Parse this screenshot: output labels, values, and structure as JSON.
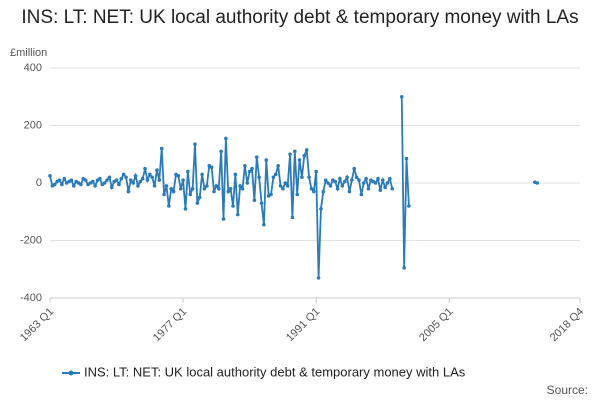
{
  "chart_data": {
    "type": "line",
    "title": "INS: LT: NET: UK local authority debt & temporary money with LAs",
    "y_label": "£million",
    "source": "Source:",
    "categories": [
      "1963 Q1",
      null,
      null,
      null,
      null,
      null,
      null,
      null,
      null,
      null,
      null,
      null,
      null,
      null,
      null,
      null,
      null,
      null,
      null,
      null,
      null,
      null,
      null,
      null,
      null,
      null,
      null,
      null,
      null,
      null,
      null,
      null,
      null,
      null,
      null,
      null,
      null,
      null,
      null,
      null,
      null,
      null,
      null,
      null,
      null,
      null,
      null,
      null,
      null,
      null,
      null,
      null,
      null,
      null,
      null,
      null,
      "1977 Q1",
      null,
      null,
      null,
      null,
      null,
      null,
      null,
      null,
      null,
      null,
      null,
      null,
      null,
      null,
      null,
      null,
      null,
      null,
      null,
      null,
      null,
      null,
      null,
      null,
      null,
      null,
      null,
      null,
      null,
      null,
      null,
      null,
      null,
      null,
      null,
      null,
      null,
      null,
      null,
      null,
      null,
      null,
      null,
      null,
      null,
      null,
      null,
      null,
      null,
      null,
      null,
      null,
      null,
      null,
      null,
      "1991 Q1",
      null,
      null,
      null,
      null,
      null,
      null,
      null,
      null,
      null,
      null,
      null,
      null,
      null,
      null,
      null,
      null,
      null,
      null,
      null,
      null,
      null,
      null,
      null,
      null,
      null,
      null,
      null,
      null,
      null,
      null,
      null,
      null,
      null,
      null,
      null,
      null,
      null,
      null,
      null,
      null,
      null,
      null,
      null,
      null,
      null,
      null,
      null,
      null,
      null,
      null,
      null,
      null,
      null,
      null,
      null,
      "2005 Q1",
      null,
      null,
      null,
      null,
      null,
      null,
      null,
      null,
      null,
      null,
      null,
      null,
      null,
      null,
      null,
      null,
      null,
      null,
      null,
      null,
      null,
      null,
      null,
      null,
      null,
      null,
      null,
      null,
      null,
      null,
      null,
      null,
      null,
      null,
      null,
      null,
      null,
      null,
      null,
      null,
      null,
      null,
      null,
      null,
      null,
      null,
      null,
      null,
      null,
      null,
      null,
      null,
      null,
      null,
      "2018 Q4"
    ],
    "series": [
      {
        "name": "INS: LT: NET: UK local authority debt & temporary money with LAs",
        "color": "#2b7bba",
        "values": [
          25,
          -10,
          -5,
          5,
          10,
          -5,
          15,
          0,
          5,
          10,
          -10,
          5,
          0,
          -5,
          15,
          10,
          -5,
          0,
          5,
          -10,
          10,
          15,
          -5,
          0,
          10,
          20,
          -15,
          5,
          10,
          -5,
          15,
          30,
          20,
          -30,
          10,
          0,
          25,
          -10,
          5,
          15,
          50,
          10,
          30,
          20,
          -10,
          45,
          10,
          120,
          -40,
          -10,
          -80,
          -20,
          -30,
          30,
          25,
          -20,
          10,
          -90,
          40,
          -40,
          -20,
          135,
          -70,
          -50,
          30,
          -20,
          -10,
          60,
          55,
          -30,
          -10,
          -20,
          110,
          -125,
          155,
          -30,
          -20,
          -80,
          30,
          -110,
          -10,
          -20,
          60,
          0,
          40,
          50,
          -60,
          90,
          20,
          -70,
          -145,
          80,
          -45,
          -40,
          20,
          30,
          60,
          -10,
          -20,
          0,
          -10,
          100,
          -120,
          110,
          -40,
          80,
          20,
          95,
          115,
          20,
          -20,
          -30,
          40,
          -330,
          -90,
          -30,
          10,
          0,
          -10,
          10,
          5,
          -20,
          15,
          -10,
          5,
          20,
          -30,
          10,
          50,
          20,
          10,
          -40,
          0,
          15,
          -20,
          10,
          5,
          0,
          15,
          -25,
          10,
          -15,
          0,
          15,
          -20,
          null,
          null,
          null,
          300,
          -295,
          85,
          -80,
          null,
          null,
          null,
          null,
          null,
          null,
          null,
          null,
          null,
          null,
          null,
          null,
          null,
          null,
          null,
          null,
          null,
          null,
          null,
          null,
          null,
          null,
          null,
          null,
          null,
          null,
          null,
          null,
          null,
          null,
          null,
          null,
          null,
          null,
          null,
          null,
          null,
          null,
          null,
          null,
          null,
          null,
          null,
          null,
          null,
          null,
          null,
          null,
          null,
          null,
          null,
          null,
          3,
          0,
          null,
          null,
          null,
          null,
          null,
          null,
          null,
          null,
          null,
          null,
          null,
          null,
          null,
          null,
          null,
          null,
          null,
          null
        ]
      }
    ],
    "ylim": [
      -400,
      400
    ],
    "yticks": [
      -400,
      -200,
      0,
      200,
      400
    ],
    "grid": true
  }
}
